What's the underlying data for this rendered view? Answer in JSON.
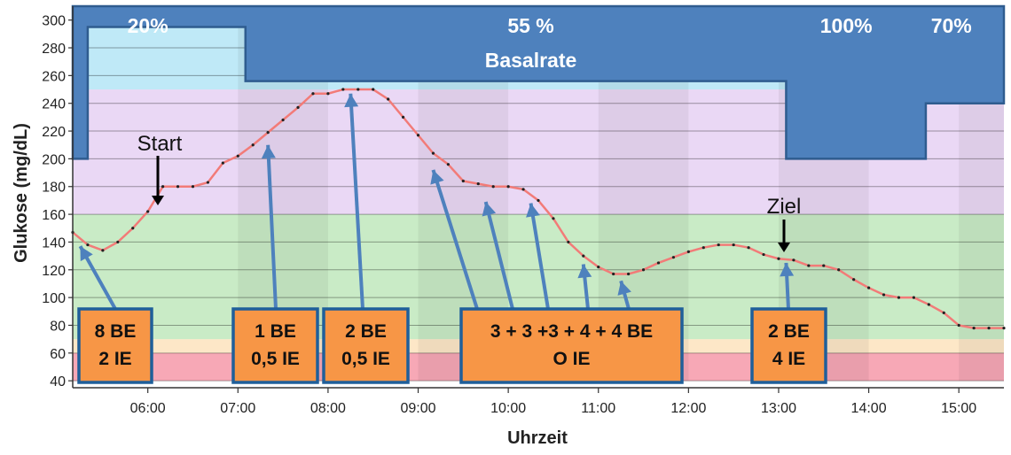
{
  "chart_data": {
    "type": "line",
    "xlabel": "Uhrzeit",
    "ylabel": "Glukose (mg/dL)",
    "ylim": [
      35,
      310
    ],
    "xlim": [
      "05:10",
      "15:30"
    ],
    "y_ticks": [
      "40",
      "60",
      "80",
      "100",
      "120",
      "140",
      "160",
      "180",
      "200",
      "220",
      "240",
      "260",
      "280",
      "300"
    ],
    "x_ticks": [
      "06:00",
      "07:00",
      "08:00",
      "09:00",
      "10:00",
      "11:00",
      "12:00",
      "13:00",
      "14:00",
      "15:00"
    ],
    "grid": true,
    "zones": [
      {
        "name": "hypo",
        "from": 40,
        "to": 60,
        "color": "#f7a8b6"
      },
      {
        "name": "low",
        "from": 60,
        "to": 70,
        "color": "#fde7c7"
      },
      {
        "name": "target",
        "from": 70,
        "to": 160,
        "color": "#c9ebc6"
      },
      {
        "name": "high",
        "from": 160,
        "to": 250,
        "color": "#ead8f5"
      },
      {
        "name": "very-high",
        "from": 250,
        "to": 300,
        "color": "#bfe9f7"
      }
    ],
    "series": [
      {
        "color": "#f27b78",
        "x": [
          "05:10",
          "05:20",
          "05:30",
          "05:40",
          "05:50",
          "06:00",
          "06:10",
          "06:20",
          "06:30",
          "06:40",
          "06:50",
          "07:00",
          "07:10",
          "07:20",
          "07:30",
          "07:40",
          "07:50",
          "08:00",
          "08:10",
          "08:20",
          "08:30",
          "08:40",
          "08:50",
          "09:00",
          "09:10",
          "09:20",
          "09:30",
          "09:40",
          "09:50",
          "10:00",
          "10:10",
          "10:20",
          "10:30",
          "10:40",
          "10:50",
          "11:00",
          "11:10",
          "11:20",
          "11:30",
          "11:40",
          "11:50",
          "12:00",
          "12:10",
          "12:20",
          "12:30",
          "12:40",
          "12:50",
          "13:00",
          "13:10",
          "13:20",
          "13:30",
          "13:40",
          "13:50",
          "14:00",
          "14:10",
          "14:20",
          "14:30",
          "14:40",
          "14:50",
          "15:00",
          "15:10",
          "15:20",
          "15:30"
        ],
        "values": [
          147,
          138,
          134,
          140,
          150,
          162,
          180,
          180,
          180,
          183,
          197,
          202,
          210,
          219,
          228,
          237,
          247,
          247,
          250,
          250,
          250,
          243,
          230,
          217,
          204,
          196,
          184,
          182,
          180,
          180,
          178,
          170,
          157,
          140,
          130,
          122,
          117,
          117,
          120,
          125,
          129,
          133,
          136,
          138,
          138,
          136,
          131,
          128,
          127,
          123,
          123,
          120,
          113,
          107,
          102,
          100,
          100,
          95,
          89,
          80,
          78,
          78,
          78
        ]
      }
    ],
    "basal": {
      "label": "Basalrate",
      "color": "#4e81bd",
      "bottom_profile": [
        {
          "from": "05:10",
          "to": "05:20",
          "value": 200
        },
        {
          "from": "05:20",
          "to": "07:05",
          "value": 295
        },
        {
          "from": "07:05",
          "to": "13:05",
          "value": 256
        },
        {
          "from": "13:05",
          "to": "14:38",
          "value": 200
        },
        {
          "from": "14:38",
          "to": "15:30",
          "value": 240
        }
      ],
      "segments": [
        {
          "label": "20%",
          "at": "06:00"
        },
        {
          "label": "55 %",
          "at": "10:15"
        },
        {
          "label": "100%",
          "at": "13:45"
        },
        {
          "label": "70%",
          "at": "14:55"
        }
      ]
    },
    "markers": [
      {
        "label": "Start",
        "at": "06:00",
        "value": 180
      },
      {
        "label": "Ziel",
        "at": "13:00",
        "value": 128
      }
    ],
    "annotations": [
      {
        "lines": [
          "8 BE",
          "2 IE"
        ],
        "arrows": [
          {
            "at": "05:15",
            "value": 137
          }
        ]
      },
      {
        "lines": [
          "1 BE",
          "0,5 IE"
        ],
        "arrows": [
          {
            "at": "07:20",
            "value": 210
          }
        ]
      },
      {
        "lines": [
          "2 BE",
          "0,5 IE"
        ],
        "arrows": [
          {
            "at": "08:15",
            "value": 247
          }
        ]
      },
      {
        "lines": [
          "3 + 3 +3 + 4 + 4 BE",
          "O IE"
        ],
        "arrows": [
          {
            "at": "09:10",
            "value": 192
          },
          {
            "at": "09:45",
            "value": 169
          },
          {
            "at": "10:15",
            "value": 168
          },
          {
            "at": "10:50",
            "value": 124
          },
          {
            "at": "11:15",
            "value": 112
          }
        ]
      },
      {
        "lines": [
          "2 BE",
          "4 IE"
        ],
        "arrows": [
          {
            "at": "13:05",
            "value": 125
          }
        ]
      }
    ],
    "colors": {
      "box_fill": "#f79646",
      "box_border": "#1f5f9a",
      "arrow": "#4e81bd",
      "marker_arrow": "#000000",
      "axis": "#333333",
      "grid": "rgba(0,0,0,0.35)"
    }
  }
}
